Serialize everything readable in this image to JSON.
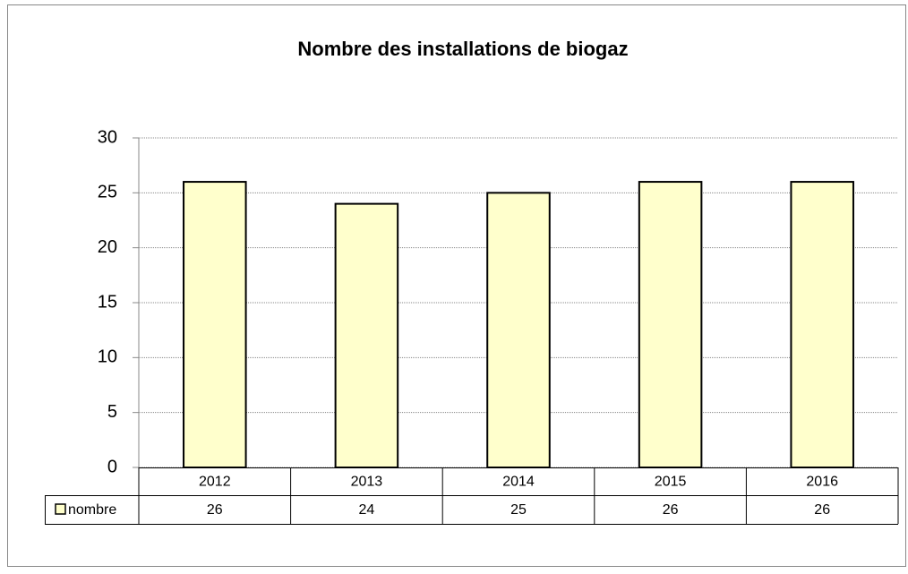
{
  "chart_data": {
    "type": "bar",
    "title": "Nombre des installations de biogaz",
    "categories": [
      "2012",
      "2013",
      "2014",
      "2015",
      "2016"
    ],
    "series": [
      {
        "name": "nombre",
        "color": "#ffffcc",
        "values": [
          26,
          24,
          25,
          26,
          26
        ]
      }
    ],
    "ylim": [
      0,
      30
    ],
    "yticks": [
      0,
      5,
      10,
      15,
      20,
      25,
      30
    ],
    "grid": true,
    "data_table": true
  }
}
